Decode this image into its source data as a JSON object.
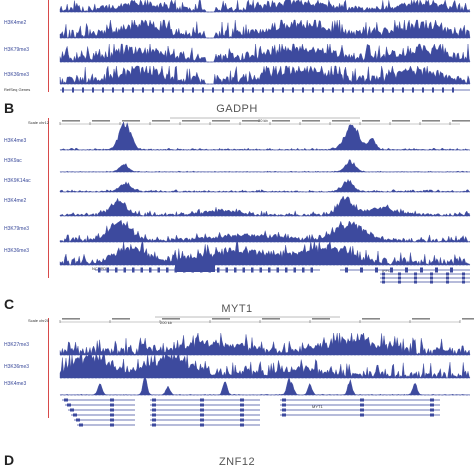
{
  "panels": [
    {
      "letter": "",
      "gene": "",
      "scale": "",
      "tracks": [
        "H3K4me2",
        "H3K79me3",
        "H3K36me3"
      ],
      "refseq": "RefSeq Genes"
    },
    {
      "letter": "B",
      "gene": "GADPH",
      "scale": "Scale chr12",
      "scale_bar": "20 kb",
      "tracks": [
        "H3K4me3",
        "H3K9ac",
        "H3K9K14ac",
        "H3K4me2",
        "H3K79me3",
        "H3K36me3"
      ],
      "genes": [
        "NCAPD2",
        "GAPDH",
        "IFFO1"
      ]
    },
    {
      "letter": "C",
      "gene": "MYT1",
      "scale": "Scale chr20",
      "scale_bar": "200 kb",
      "tracks": [
        "H3K27me3",
        "H3K36me3",
        "H3K4me3"
      ],
      "genes": [
        "MYT1"
      ]
    },
    {
      "letter": "D",
      "gene": "ZNF12",
      "scale": "",
      "tracks": []
    }
  ],
  "colors": {
    "signal": "#3d4a9e",
    "axis": "#d84a4a",
    "text": "#3a4a9a"
  }
}
